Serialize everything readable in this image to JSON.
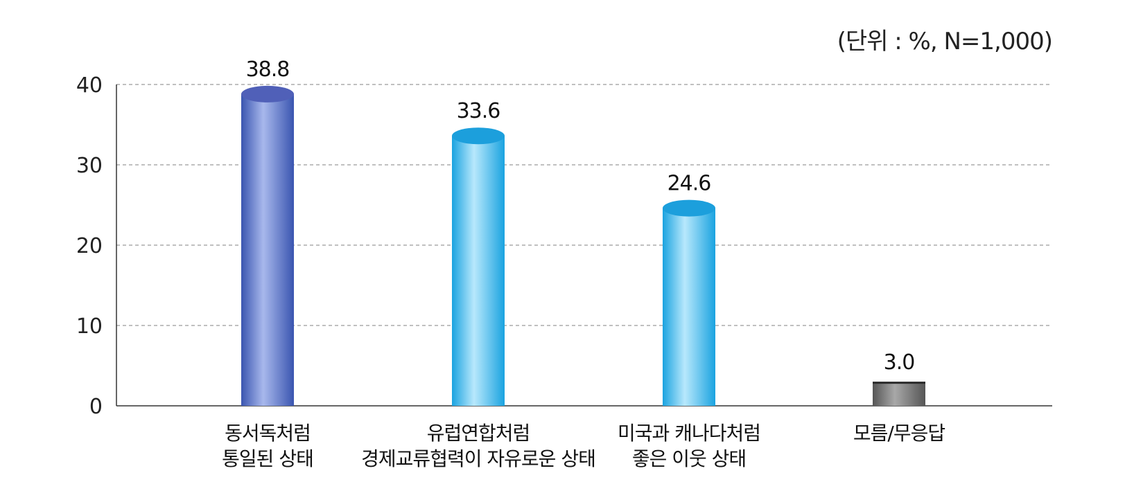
{
  "chart_data": {
    "type": "bar",
    "unit_note": "(단위 : %, N=1,000)",
    "categories": [
      [
        "동서독처럼",
        "통일된 상태"
      ],
      [
        "유럽연합처럼",
        "경제교류협력이 자유로운 상태"
      ],
      [
        "미국과 캐나다처럼",
        "좋은 이웃 상태"
      ],
      [
        "모름/무응답"
      ]
    ],
    "values": [
      38.8,
      33.6,
      24.6,
      3.0
    ],
    "value_labels": [
      "38.8",
      "33.6",
      "24.6",
      "3.0"
    ],
    "ylim": [
      0,
      40
    ],
    "yticks": [
      0,
      10,
      20,
      30,
      40
    ],
    "ytick_labels": [
      "0",
      "10",
      "20",
      "30",
      "40"
    ],
    "grid": true,
    "bar_colors": [
      "#3a55b0",
      "#1aa3e0",
      "#1aa3e0",
      "#555555"
    ],
    "bar_highlight_colors": [
      "#a8b8ec",
      "#b8e8fc",
      "#b8e8fc",
      "#a8a8a8"
    ],
    "bar_top_colors": [
      "#5060b8",
      "#1c9fdc",
      "#1c9fdc",
      "#3a3a3a"
    ]
  }
}
